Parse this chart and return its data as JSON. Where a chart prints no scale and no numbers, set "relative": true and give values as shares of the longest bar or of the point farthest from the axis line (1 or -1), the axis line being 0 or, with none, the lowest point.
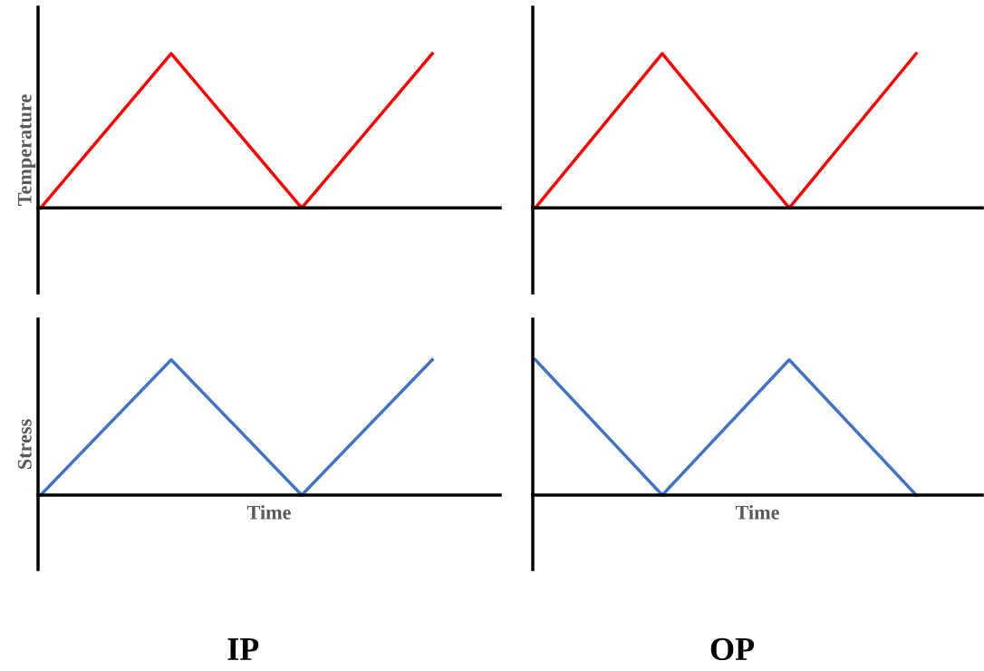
{
  "chart_data": [
    {
      "type": "line",
      "relative": true,
      "tick_labels": false,
      "ylabel": "Temperature",
      "categories": [
        null,
        null,
        null,
        null
      ],
      "series": [
        {
          "color": "#ff0000",
          "values": [
            0,
            1,
            0,
            1
          ]
        }
      ]
    },
    {
      "type": "line",
      "relative": true,
      "tick_labels": false,
      "categories": [
        null,
        null,
        null,
        null
      ],
      "series": [
        {
          "color": "#ff0000",
          "values": [
            0,
            1,
            0,
            1
          ]
        }
      ]
    },
    {
      "type": "line",
      "relative": true,
      "tick_labels": false,
      "ylabel": "Stress",
      "xlabel": "Time",
      "annotations": [
        "IP"
      ],
      "categories": [
        null,
        null,
        null,
        null
      ],
      "series": [
        {
          "color": "#4472c4",
          "values": [
            0,
            1,
            0,
            1
          ]
        }
      ]
    },
    {
      "type": "line",
      "relative": true,
      "tick_labels": false,
      "xlabel": "Time",
      "annotations": [
        "OP"
      ],
      "categories": [
        null,
        null,
        null,
        null
      ],
      "series": [
        {
          "color": "#4472c4",
          "values": [
            1,
            0,
            1,
            0
          ]
        }
      ]
    }
  ]
}
